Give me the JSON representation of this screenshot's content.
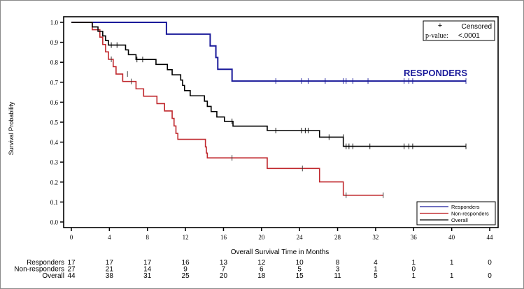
{
  "chart_data": {
    "type": "line",
    "subtype": "kaplan-meier step",
    "xlabel": "Overall Survival Time in Months",
    "ylabel": "Survival Probability",
    "xlim": [
      0,
      44
    ],
    "ylim": [
      0,
      1
    ],
    "x_ticks": [
      "0",
      "4",
      "8",
      "12",
      "16",
      "20",
      "24",
      "28",
      "32",
      "36",
      "40",
      "44"
    ],
    "y_ticks": [
      "0.0",
      "0.1",
      "0.2",
      "0.3",
      "0.4",
      "0.5",
      "0.6",
      "0.7",
      "0.8",
      "0.9",
      "1.0"
    ],
    "annotation": "RESPONDERS",
    "censor_legend": {
      "symbol": "+",
      "label": "Censored"
    },
    "pvalue": {
      "label": "p-value:",
      "value": "<.0001"
    },
    "legend_position": "bottom-right",
    "series": [
      {
        "name": "Responders",
        "color": "#1a1a9a",
        "steps": [
          [
            0,
            1.0
          ],
          [
            10,
            0.941
          ],
          [
            14.6,
            0.882
          ],
          [
            15.2,
            0.824
          ],
          [
            15.4,
            0.765
          ],
          [
            16.9,
            0.706
          ]
        ],
        "end": 41.5,
        "censored": [
          [
            21.5,
            0.706
          ],
          [
            24.2,
            0.706
          ],
          [
            24.9,
            0.706
          ],
          [
            26.7,
            0.706
          ],
          [
            28.6,
            0.706
          ],
          [
            28.9,
            0.706
          ],
          [
            29.6,
            0.706
          ],
          [
            31.2,
            0.706
          ],
          [
            35,
            0.706
          ],
          [
            35.5,
            0.706
          ],
          [
            35.9,
            0.706
          ],
          [
            41.5,
            0.706
          ]
        ]
      },
      {
        "name": "Non-responders",
        "color": "#c0282d",
        "steps": [
          [
            0,
            1.0
          ],
          [
            2.2,
            0.963
          ],
          [
            3.0,
            0.926
          ],
          [
            3.3,
            0.889
          ],
          [
            3.6,
            0.852
          ],
          [
            3.9,
            0.815
          ],
          [
            4.4,
            0.778
          ],
          [
            4.7,
            0.741
          ],
          [
            5.4,
            0.704
          ],
          [
            6.8,
            0.667
          ],
          [
            7.6,
            0.63
          ],
          [
            9.0,
            0.593
          ],
          [
            9.8,
            0.556
          ],
          [
            10.6,
            0.519
          ],
          [
            10.8,
            0.481
          ],
          [
            11.0,
            0.444
          ],
          [
            11.2,
            0.414
          ],
          [
            14.1,
            0.376
          ],
          [
            14.2,
            0.345
          ],
          [
            14.3,
            0.321
          ],
          [
            20.6,
            0.268
          ],
          [
            26.1,
            0.201
          ],
          [
            28.6,
            0.134
          ]
        ],
        "end": 32.8,
        "censored": [
          [
            4.2,
            0.815
          ],
          [
            5.9,
            0.741
          ],
          [
            6.3,
            0.704
          ],
          [
            16.9,
            0.321
          ],
          [
            24.3,
            0.268
          ],
          [
            28.9,
            0.134
          ],
          [
            32.8,
            0.134
          ]
        ]
      },
      {
        "name": "Overall",
        "color": "#000000",
        "steps": [
          [
            0,
            1.0
          ],
          [
            2.2,
            0.977
          ],
          [
            2.8,
            0.955
          ],
          [
            3.3,
            0.932
          ],
          [
            3.6,
            0.909
          ],
          [
            3.9,
            0.886
          ],
          [
            5.7,
            0.862
          ],
          [
            6.0,
            0.838
          ],
          [
            6.8,
            0.814
          ],
          [
            8.9,
            0.789
          ],
          [
            10.1,
            0.763
          ],
          [
            10.6,
            0.737
          ],
          [
            11.5,
            0.711
          ],
          [
            11.7,
            0.684
          ],
          [
            11.9,
            0.658
          ],
          [
            12.5,
            0.632
          ],
          [
            14.0,
            0.605
          ],
          [
            14.3,
            0.579
          ],
          [
            14.7,
            0.553
          ],
          [
            15.3,
            0.526
          ],
          [
            16.1,
            0.504
          ],
          [
            17.0,
            0.48
          ],
          [
            20.6,
            0.458
          ],
          [
            26.1,
            0.425
          ],
          [
            28.6,
            0.379
          ]
        ],
        "end": 41.5,
        "censored": [
          [
            4.2,
            0.886
          ],
          [
            4.8,
            0.886
          ],
          [
            6.9,
            0.814
          ],
          [
            7.5,
            0.814
          ],
          [
            16.9,
            0.504
          ],
          [
            21.5,
            0.458
          ],
          [
            24.2,
            0.458
          ],
          [
            24.6,
            0.458
          ],
          [
            24.9,
            0.458
          ],
          [
            27.1,
            0.425
          ],
          [
            28.6,
            0.425
          ],
          [
            28.9,
            0.379
          ],
          [
            29.2,
            0.379
          ],
          [
            29.6,
            0.379
          ],
          [
            31.4,
            0.379
          ],
          [
            35,
            0.379
          ],
          [
            35.5,
            0.379
          ],
          [
            35.9,
            0.379
          ],
          [
            41.5,
            0.379
          ]
        ]
      }
    ],
    "risk_table": {
      "times": [
        0,
        4,
        8,
        12,
        16,
        20,
        24,
        28,
        32,
        36,
        40,
        44
      ],
      "rows": [
        {
          "label": "Responders",
          "values": [
            "17",
            "17",
            "17",
            "16",
            "13",
            "12",
            "10",
            "8",
            "4",
            "1",
            "1",
            "0"
          ]
        },
        {
          "label": "Non-responders",
          "values": [
            "27",
            "21",
            "14",
            "9",
            "7",
            "6",
            "5",
            "3",
            "1",
            "0",
            "",
            ""
          ]
        },
        {
          "label": "Overall",
          "values": [
            "44",
            "38",
            "31",
            "25",
            "20",
            "18",
            "15",
            "11",
            "5",
            "1",
            "1",
            "0"
          ]
        }
      ]
    }
  }
}
